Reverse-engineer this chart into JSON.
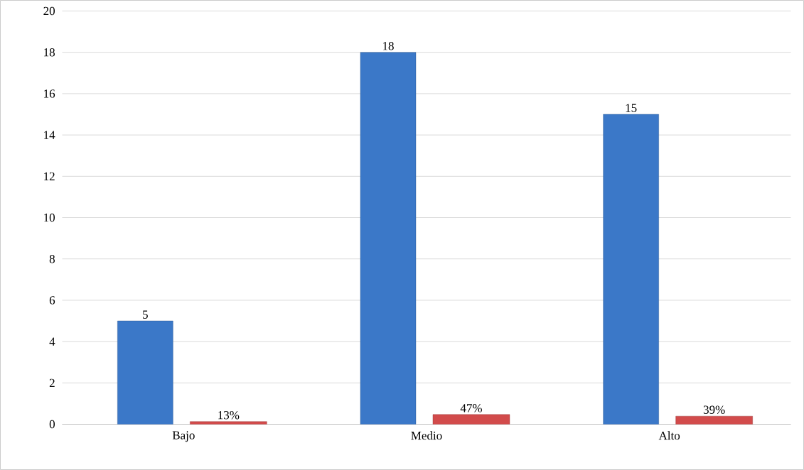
{
  "chart_data": {
    "type": "bar",
    "categories": [
      "Bajo",
      "Medio",
      "Alto"
    ],
    "series": [
      {
        "color": "#3b78c8",
        "values": [
          5,
          18,
          15
        ],
        "value_labels": [
          "5",
          "18",
          "15"
        ]
      },
      {
        "color": "#d24b4b",
        "values": [
          0.13,
          0.47,
          0.39
        ],
        "value_labels": [
          "13%",
          "47%",
          "39%"
        ]
      }
    ],
    "ylim": [
      0,
      20
    ],
    "yticks": [
      0,
      2,
      4,
      6,
      8,
      10,
      12,
      14,
      16,
      18,
      20
    ],
    "grid": "y"
  }
}
